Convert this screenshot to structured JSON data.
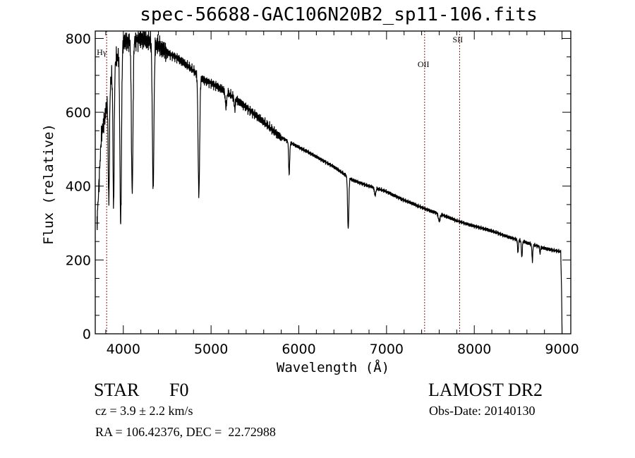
{
  "chart_data": {
    "type": "line",
    "title": "spec-56688-GAC106N20B2_sp11-106.fits",
    "xlabel": "Wavelength (Å)",
    "ylabel": "Flux (relative)",
    "xlim": [
      3680,
      9100
    ],
    "ylim": [
      0,
      820
    ],
    "xticks": [
      4000,
      5000,
      6000,
      7000,
      8000,
      9000
    ],
    "yticks": [
      0,
      200,
      400,
      600,
      800
    ],
    "grid": false,
    "continuum": [
      [
        3700,
        300
      ],
      [
        3750,
        540
      ],
      [
        3800,
        600
      ],
      [
        3850,
        680
      ],
      [
        3900,
        730
      ],
      [
        4000,
        790
      ],
      [
        4200,
        800
      ],
      [
        4400,
        780
      ],
      [
        4500,
        762
      ],
      [
        4600,
        750
      ],
      [
        4800,
        712
      ],
      [
        4900,
        690
      ],
      [
        5000,
        680
      ],
      [
        5200,
        650
      ],
      [
        5400,
        615
      ],
      [
        5600,
        572
      ],
      [
        5800,
        532
      ],
      [
        6000,
        505
      ],
      [
        6200,
        480
      ],
      [
        6400,
        452
      ],
      [
        6600,
        418
      ],
      [
        6800,
        400
      ],
      [
        7000,
        385
      ],
      [
        7200,
        362
      ],
      [
        7400,
        342
      ],
      [
        7600,
        325
      ],
      [
        7800,
        306
      ],
      [
        8000,
        292
      ],
      [
        8200,
        278
      ],
      [
        8400,
        262
      ],
      [
        8600,
        246
      ],
      [
        8800,
        232
      ],
      [
        8985,
        222
      ],
      [
        8995,
        120
      ],
      [
        9000,
        0
      ]
    ],
    "absorption_lines": [
      [
        3835,
        300,
        7
      ],
      [
        3889,
        380,
        7
      ],
      [
        3970,
        470,
        9
      ],
      [
        4101,
        410,
        9
      ],
      [
        4340,
        390,
        9
      ],
      [
        4861,
        320,
        9
      ],
      [
        5170,
        40,
        8
      ],
      [
        5270,
        30,
        6
      ],
      [
        5890,
        90,
        6
      ],
      [
        6563,
        140,
        7
      ],
      [
        6870,
        20,
        8
      ],
      [
        7600,
        20,
        10
      ],
      [
        8498,
        35,
        5
      ],
      [
        8542,
        45,
        5
      ],
      [
        8662,
        45,
        5
      ],
      [
        8750,
        20,
        4
      ]
    ],
    "line_markers": [
      {
        "label": "Hγ",
        "wavelength": 3810
      },
      {
        "label": "OII",
        "wavelength": 7434
      },
      {
        "label": "SII",
        "wavelength": 7833
      }
    ]
  },
  "info": {
    "object_type": "STAR",
    "subclass": "F0",
    "survey": "LAMOST DR2",
    "cz": "cz = 3.9 ± 2.2 km/s",
    "obs_date": "Obs-Date: 20140130",
    "coords": "RA = 106.42376, DEC =  22.72988"
  },
  "colors": {
    "spectrum": "#000000",
    "marker": "#8b1a1a"
  }
}
